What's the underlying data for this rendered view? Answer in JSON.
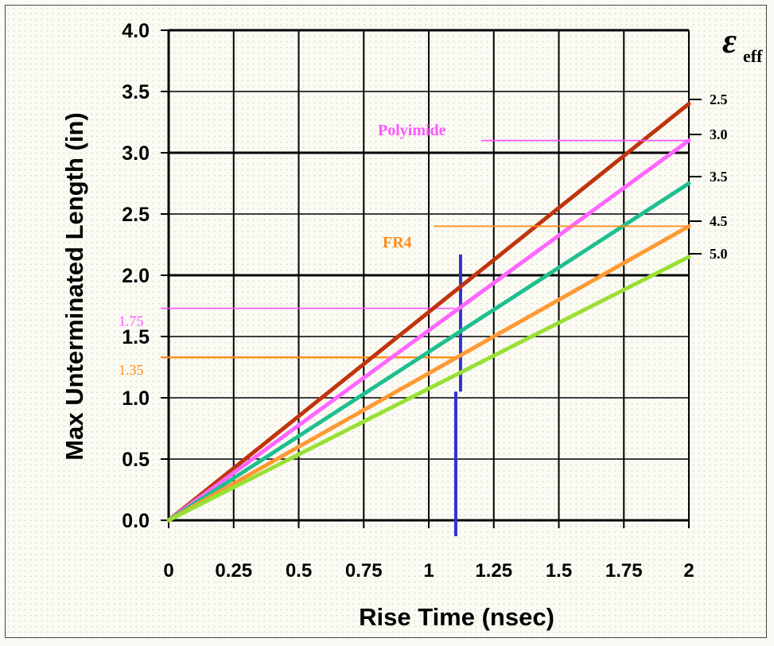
{
  "chart_data": {
    "type": "line",
    "xlabel": "Rise Time (nsec)",
    "ylabel": "Max Unterminated Length (in)",
    "xlim": [
      0,
      2
    ],
    "ylim": [
      0,
      4
    ],
    "x_ticks": [
      "0",
      "0.25",
      "0.5",
      "0.75",
      "1",
      "1.25",
      "1.5",
      "1.75",
      "2"
    ],
    "y_ticks": [
      "0.0",
      "0.5",
      "1.0",
      "1.5",
      "2.0",
      "2.5",
      "3.0",
      "3.5",
      "4.0"
    ],
    "grid": true,
    "legend_title": "ε",
    "legend_title_sub": "eff",
    "legend_placement": "right",
    "series": [
      {
        "name": "2.5",
        "color": "#c0340d",
        "x": [
          0,
          2
        ],
        "y": [
          0,
          3.4
        ]
      },
      {
        "name": "3.0",
        "color": "#ff66ff",
        "x": [
          0,
          2
        ],
        "y": [
          0,
          3.1
        ]
      },
      {
        "name": "3.5",
        "color": "#1fbf8f",
        "x": [
          0,
          2
        ],
        "y": [
          0,
          2.75
        ]
      },
      {
        "name": "4.5",
        "color": "#ff9933",
        "x": [
          0,
          2
        ],
        "y": [
          0,
          2.4
        ]
      },
      {
        "name": "5.0",
        "color": "#99e035",
        "x": [
          0,
          2
        ],
        "y": [
          0,
          2.15
        ]
      }
    ],
    "annotations": [
      {
        "text": "Polyimide",
        "color": "#ff55ff",
        "line_y": 3.1,
        "line_x_from": 1.25
      },
      {
        "text": "FR4",
        "color": "#ff8c1a",
        "line_y": 2.4,
        "line_x_from": 1.0
      }
    ],
    "reference_lines": [
      {
        "label": "1.75",
        "y": 1.73,
        "x_to": 1.1,
        "color": "#ff55ff"
      },
      {
        "label": "1.35",
        "y": 1.33,
        "x_to": 1.1,
        "color": "#ff8c1a"
      }
    ],
    "marker_line": {
      "x": 1.11,
      "y_from": 0,
      "y_to": 2.17,
      "color": "#3333cc"
    }
  }
}
